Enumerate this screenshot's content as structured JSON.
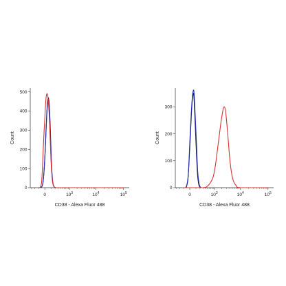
{
  "chart_data": [
    {
      "type": "line",
      "xlabel": "CD38 - Alexa Fluor 488",
      "ylabel": "Count",
      "x_scale": "biexponential",
      "x_ticks": [
        {
          "value": 0,
          "label": "0"
        },
        {
          "value": 1000,
          "label": "10",
          "sup": "3"
        },
        {
          "value": 10000,
          "label": "10",
          "sup": "4"
        },
        {
          "value": 100000,
          "label": "10",
          "sup": "5"
        }
      ],
      "ylim": [
        0,
        520
      ],
      "y_ticks": [
        0,
        100,
        200,
        300,
        400,
        500
      ],
      "series": [
        {
          "color": "#1a1a1a",
          "points": [
            [
              -60,
              0
            ],
            [
              -25,
              25
            ],
            [
              0,
              150
            ],
            [
              25,
              380
            ],
            [
              40,
              450
            ],
            [
              55,
              465
            ],
            [
              75,
              380
            ],
            [
              100,
              170
            ],
            [
              130,
              40
            ],
            [
              170,
              5
            ],
            [
              220,
              0
            ]
          ]
        },
        {
          "color": "#1f2fb5",
          "points": [
            [
              -50,
              0
            ],
            [
              -20,
              40
            ],
            [
              5,
              200
            ],
            [
              30,
              400
            ],
            [
              50,
              455
            ],
            [
              65,
              440
            ],
            [
              85,
              320
            ],
            [
              110,
              130
            ],
            [
              140,
              30
            ],
            [
              180,
              3
            ],
            [
              230,
              0
            ]
          ]
        },
        {
          "color": "#d93030",
          "points": [
            [
              -80,
              0
            ],
            [
              -45,
              30
            ],
            [
              -15,
              250
            ],
            [
              10,
              440
            ],
            [
              25,
              488
            ],
            [
              45,
              470
            ],
            [
              70,
              350
            ],
            [
              100,
              140
            ],
            [
              135,
              30
            ],
            [
              180,
              4
            ],
            [
              240,
              0
            ],
            [
              1000,
              0
            ],
            [
              100000,
              0
            ]
          ]
        }
      ]
    },
    {
      "type": "line",
      "xlabel": "CD38 - Alexa Fluor 488",
      "ylabel": "Count",
      "x_scale": "biexponential",
      "x_ticks": [
        {
          "value": 0,
          "label": "0"
        },
        {
          "value": 1000,
          "label": "10",
          "sup": "3"
        },
        {
          "value": 10000,
          "label": "10",
          "sup": "4"
        },
        {
          "value": 100000,
          "label": "10",
          "sup": "5"
        }
      ],
      "ylim": [
        0,
        370
      ],
      "y_ticks": [
        0,
        100,
        200,
        300
      ],
      "series": [
        {
          "color": "#1a1a1a",
          "points": [
            [
              -60,
              0
            ],
            [
              -25,
              30
            ],
            [
              0,
              150
            ],
            [
              25,
              290
            ],
            [
              45,
              345
            ],
            [
              60,
              340
            ],
            [
              80,
              260
            ],
            [
              105,
              150
            ],
            [
              135,
              50
            ],
            [
              170,
              10
            ],
            [
              220,
              0
            ]
          ]
        },
        {
          "color": "#1f2fb5",
          "points": [
            [
              -50,
              0
            ],
            [
              -20,
              50
            ],
            [
              5,
              200
            ],
            [
              30,
              320
            ],
            [
              50,
              360
            ],
            [
              65,
              350
            ],
            [
              85,
              270
            ],
            [
              110,
              170
            ],
            [
              140,
              60
            ],
            [
              180,
              12
            ],
            [
              230,
              0
            ]
          ]
        },
        {
          "color": "#d93030",
          "points": [
            [
              -100,
              0
            ],
            [
              300,
              0
            ],
            [
              500,
              6
            ],
            [
              700,
              20
            ],
            [
              900,
              40
            ],
            [
              1100,
              80
            ],
            [
              1300,
              130
            ],
            [
              1500,
              175
            ],
            [
              1700,
              215
            ],
            [
              1900,
              250
            ],
            [
              2100,
              275
            ],
            [
              2300,
              295
            ],
            [
              2500,
              300
            ],
            [
              2700,
              292
            ],
            [
              2900,
              270
            ],
            [
              3200,
              225
            ],
            [
              3600,
              165
            ],
            [
              4000,
              110
            ],
            [
              4600,
              60
            ],
            [
              5500,
              25
            ],
            [
              7000,
              8
            ],
            [
              10000,
              0
            ],
            [
              100000,
              0
            ]
          ]
        }
      ]
    }
  ]
}
